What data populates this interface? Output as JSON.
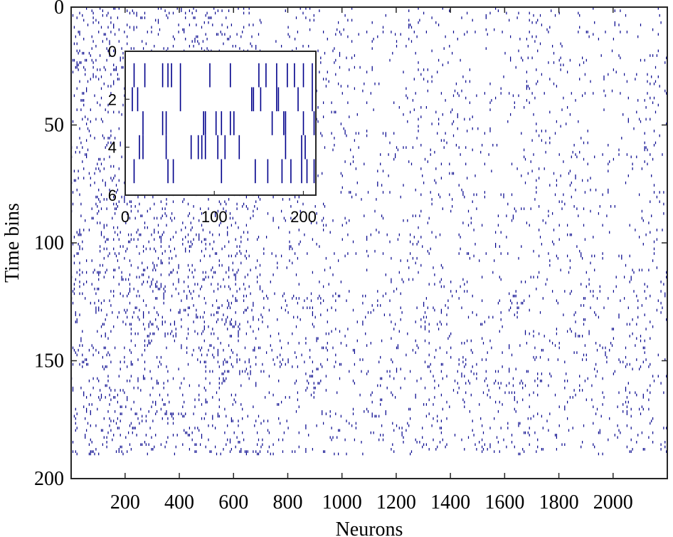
{
  "chart_data": [
    {
      "type": "raster",
      "description_of_marks": "binary spike raster; each vertical tick = one spike of a neuron in a time bin",
      "xlabel": "Neurons",
      "ylabel": "Time bins",
      "xlim": [
        1,
        2200
      ],
      "ylim": [
        0,
        200
      ],
      "y_reversed": true,
      "xticks": [
        200,
        400,
        600,
        800,
        1000,
        1200,
        1400,
        1600,
        1800,
        2000
      ],
      "yticks": [
        0,
        50,
        100,
        150,
        200
      ],
      "spike_color": "#00008b",
      "density_regions": [
        {
          "neurons": [
            1,
            700
          ],
          "time_bins": [
            0,
            190
          ],
          "rate": 0.07
        },
        {
          "neurons": [
            700,
            2200
          ],
          "time_bins": [
            0,
            120
          ],
          "rate": 0.025
        },
        {
          "neurons": [
            700,
            2200
          ],
          "time_bins": [
            120,
            190
          ],
          "rate": 0.04
        }
      ]
    },
    {
      "type": "raster",
      "role": "inset",
      "xlim": [
        0,
        200
      ],
      "ylim": [
        0,
        6
      ],
      "y_reversed": true,
      "xticks": [
        0,
        100,
        200
      ],
      "yticks": [
        0,
        2,
        4,
        6
      ],
      "spike_color": "#00008b",
      "rows": [
        {
          "time_bin": 1,
          "neurons": [
            10,
            22,
            42,
            48,
            52,
            62,
            95,
            118,
            150,
            158,
            170,
            182,
            190,
            200,
            210
          ]
        },
        {
          "time_bin": 2,
          "neurons": [
            8,
            14,
            62,
            142,
            144,
            152,
            170,
            172,
            194,
            210
          ]
        },
        {
          "time_bin": 3,
          "neurons": [
            20,
            42,
            46,
            88,
            90,
            102,
            108,
            118,
            122,
            165,
            178,
            180,
            200,
            212
          ]
        },
        {
          "time_bin": 4,
          "neurons": [
            16,
            20,
            46,
            74,
            82,
            86,
            90,
            104,
            112,
            128,
            180,
            198,
            202
          ]
        },
        {
          "time_bin": 5,
          "neurons": [
            10,
            48,
            54,
            108,
            146,
            160,
            176,
            186,
            198,
            204,
            212
          ]
        }
      ]
    }
  ]
}
